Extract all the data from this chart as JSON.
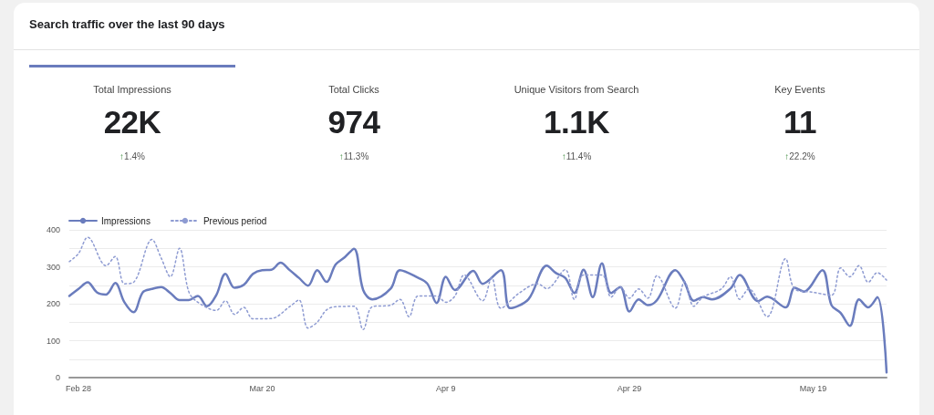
{
  "chart_data": [
    {
      "type": "other",
      "title": "Search traffic over the last 90 days",
      "annotations": [
        "Total Impressions",
        "22K",
        "↑1.4%",
        "Total Clicks",
        "974",
        "↑11.3%",
        "Unique Visitors from Search",
        "1.1K",
        "↑11.4%",
        "Key Events",
        "11",
        "↑22.2%"
      ]
    },
    {
      "type": "line",
      "legend": "top left",
      "grid": "y",
      "marker": "none",
      "xlim": [
        "--02-27",
        "--05-27"
      ],
      "xticks": [
        {
          "value": "--02-28",
          "label": "Feb 28"
        },
        {
          "value": "--03-20",
          "label": "Mar 20"
        },
        {
          "value": "--04-09",
          "label": "Apr 9"
        },
        {
          "value": "--04-29",
          "label": "Apr 29"
        },
        {
          "value": "--05-19",
          "label": "May 19"
        }
      ],
      "ylim": [
        0,
        400
      ],
      "yticks": [
        0,
        {
          "value": 50,
          "label": null
        },
        100,
        {
          "value": 150,
          "label": null
        },
        200,
        {
          "value": 250,
          "label": null
        },
        300,
        {
          "value": 350,
          "label": null
        },
        400
      ],
      "series": [
        {
          "name": "Impressions",
          "color": "#6a7cbd",
          "line_style": "solid",
          "x": [
            "--02-27",
            "--02-28",
            "--03-01",
            "--03-02",
            "--03-03",
            "--03-04",
            "--03-05",
            "--03-06",
            "--03-07",
            "--03-08",
            "--03-09",
            "--03-10",
            "--03-11",
            "--03-12",
            "--03-13",
            "--03-14",
            "--03-15",
            "--03-16",
            "--03-17",
            "--03-18",
            "--03-19",
            "--03-20",
            "--03-21",
            "--03-22",
            "--03-23",
            "--03-24",
            "--03-25",
            "--03-26",
            "--03-27",
            "--03-28",
            "--03-29",
            "--03-30",
            "--03-31",
            "--04-01",
            "--04-03",
            "--04-04",
            "--04-06",
            "--04-07",
            "--04-08",
            "--04-09",
            "--04-10",
            "--04-12",
            "--04-13",
            "--04-15",
            "--04-16",
            "--04-18",
            "--04-20",
            "--04-21",
            "--04-22",
            "--04-23",
            "--04-24",
            "--04-25",
            "--04-26",
            "--04-27",
            "--04-28",
            "--04-29",
            "--04-30",
            "--05-01",
            "--05-02",
            "--05-04",
            "--05-05",
            "--05-06",
            "--05-07",
            "--05-08",
            "--05-10",
            "--05-11",
            "--05-13",
            "--05-14",
            "--05-16",
            "--05-17",
            "--05-18",
            "--05-20",
            "--05-21",
            "--05-22",
            "--05-23",
            "--05-24",
            "--05-25",
            "--05-26",
            "--05-27"
          ],
          "values": [
            221,
            240,
            258,
            231,
            225,
            256,
            204,
            177,
            231,
            240,
            245,
            229,
            210,
            210,
            221,
            193,
            223,
            281,
            243,
            251,
            281,
            291,
            292,
            311,
            291,
            270,
            249,
            291,
            259,
            306,
            326,
            349,
            237,
            212,
            241,
            291,
            270,
            254,
            202,
            273,
            237,
            289,
            254,
            291,
            188,
            212,
            303,
            283,
            270,
            229,
            292,
            218,
            309,
            229,
            245,
            179,
            212,
            196,
            210,
            291,
            258,
            208,
            218,
            212,
            241,
            278,
            207,
            219,
            190,
            243,
            233,
            291,
            196,
            175,
            140,
            212,
            190,
            218,
            14
          ]
        },
        {
          "name": "Previous period",
          "color": "#8e9bd2",
          "line_style": "dotted",
          "x": [
            "--02-27",
            "--02-28",
            "--03-01",
            "--03-03",
            "--03-04",
            "--03-05",
            "--03-06",
            "--03-08",
            "--03-09",
            "--03-10",
            "--03-11",
            "--03-12",
            "--03-13",
            "--03-15",
            "--03-16",
            "--03-17",
            "--03-18",
            "--03-19",
            "--03-21",
            "--03-23",
            "--03-24",
            "--03-25",
            "--03-26",
            "--03-27",
            "--03-28",
            "--03-30",
            "--03-31",
            "--04-01",
            "--04-03",
            "--04-04",
            "--04-05",
            "--04-06",
            "--04-08",
            "--04-09",
            "--04-10",
            "--04-11",
            "--04-13",
            "--04-14",
            "--04-15",
            "--04-17",
            "--04-19",
            "--04-20",
            "--04-22",
            "--04-23",
            "--04-24",
            "--04-26",
            "--04-27",
            "--04-28",
            "--04-29",
            "--04-30",
            "--05-01",
            "--05-02",
            "--05-04",
            "--05-05",
            "--05-06",
            "--05-07",
            "--05-09",
            "--05-10",
            "--05-11",
            "--05-12",
            "--05-14",
            "--05-16",
            "--05-17",
            "--05-19",
            "--05-21",
            "--05-22",
            "--05-23",
            "--05-24",
            "--05-25",
            "--05-26",
            "--05-27"
          ],
          "values": [
            314,
            336,
            380,
            303,
            328,
            254,
            258,
            374,
            324,
            273,
            350,
            233,
            204,
            182,
            208,
            171,
            190,
            159,
            160,
            192,
            210,
            134,
            150,
            183,
            192,
            193,
            130,
            192,
            196,
            212,
            165,
            221,
            221,
            204,
            221,
            278,
            208,
            270,
            188,
            229,
            254,
            241,
            292,
            212,
            278,
            278,
            218,
            245,
            215,
            240,
            215,
            276,
            188,
            260,
            193,
            218,
            240,
            273,
            212,
            240,
            165,
            322,
            240,
            231,
            223,
            297,
            273,
            303,
            258,
            284,
            264
          ]
        }
      ]
    }
  ]
}
